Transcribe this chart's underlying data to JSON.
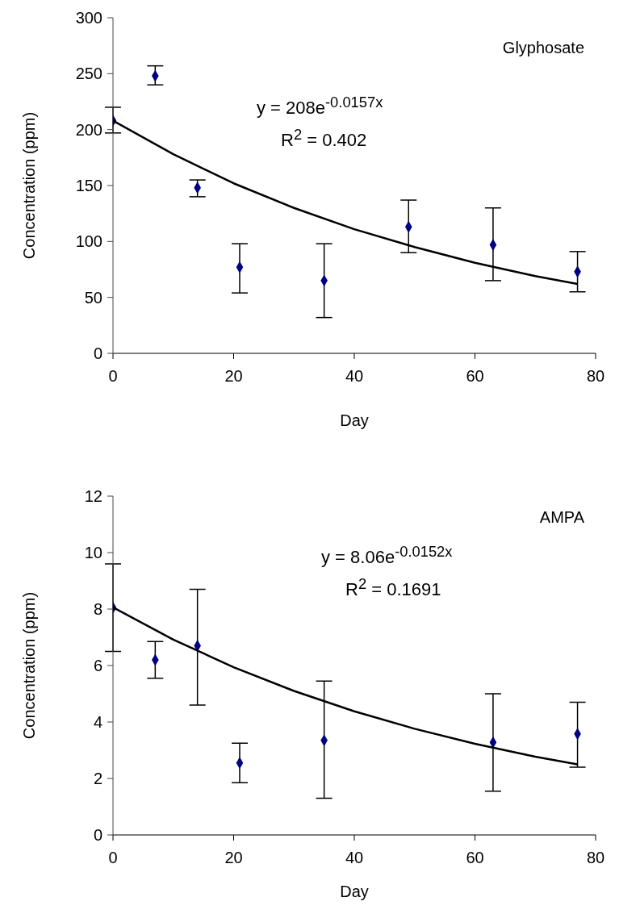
{
  "chart_data": [
    {
      "type": "scatter",
      "title": "Glyphosate",
      "xlabel": "Day",
      "ylabel": "Concentration (ppm)",
      "annotations": [
        "y = 208e$^{-0.0157x}$",
        "R$^{2}$ = 0.402"
      ],
      "xlim": [
        0,
        80
      ],
      "xticks": [
        0,
        20,
        40,
        60,
        80
      ],
      "ylim": [
        0,
        300
      ],
      "yticks": [
        0,
        50,
        100,
        150,
        200,
        250,
        300
      ],
      "grid": false,
      "legend": false,
      "marker": "diamond",
      "series": [
        {
          "color": "#000080",
          "x": [
            0,
            7,
            14,
            21,
            35,
            49,
            63,
            77
          ],
          "values": [
            208,
            248,
            148,
            77,
            65,
            113,
            97,
            73
          ],
          "errors": [
            [
              197,
              220
            ],
            [
              240,
              257
            ],
            [
              140,
              155
            ],
            [
              54,
              98
            ],
            [
              32,
              98
            ],
            [
              90,
              137
            ],
            [
              65,
              130
            ],
            [
              55,
              91
            ]
          ]
        },
        {
          "type": "line",
          "color": "#000000",
          "marker": "none",
          "x": [
            0,
            10,
            20,
            30,
            40,
            50,
            60,
            70,
            77
          ],
          "values": [
            208,
            178,
            152,
            130,
            111,
            95,
            81,
            69,
            62
          ]
        }
      ]
    },
    {
      "type": "scatter",
      "title": "AMPA",
      "xlabel": "Day",
      "ylabel": "Concentration (ppm)",
      "annotations": [
        "y = 8.06e$^{-0.0152x}$",
        "R$^{2}$ = 0.1691"
      ],
      "xlim": [
        0,
        80
      ],
      "xticks": [
        0,
        20,
        40,
        60,
        80
      ],
      "ylim": [
        0,
        12
      ],
      "yticks": [
        0,
        2,
        4,
        6,
        8,
        10,
        12
      ],
      "grid": false,
      "legend": false,
      "marker": "diamond",
      "series": [
        {
          "color": "#000080",
          "x": [
            0,
            7,
            14,
            21,
            35,
            63,
            77
          ],
          "values": [
            8.05,
            6.2,
            6.7,
            2.55,
            3.35,
            3.28,
            3.58
          ],
          "errors": [
            [
              6.5,
              9.6
            ],
            [
              5.55,
              6.85
            ],
            [
              4.6,
              8.7
            ],
            [
              1.85,
              3.25
            ],
            [
              1.3,
              5.45
            ],
            [
              1.55,
              5.0
            ],
            [
              2.4,
              4.7
            ]
          ]
        },
        {
          "type": "line",
          "color": "#000000",
          "marker": "none",
          "x": [
            0,
            10,
            20,
            30,
            40,
            50,
            60,
            70,
            77
          ],
          "values": [
            8.06,
            6.92,
            5.94,
            5.1,
            4.38,
            3.76,
            3.23,
            2.77,
            2.5
          ]
        }
      ]
    }
  ]
}
